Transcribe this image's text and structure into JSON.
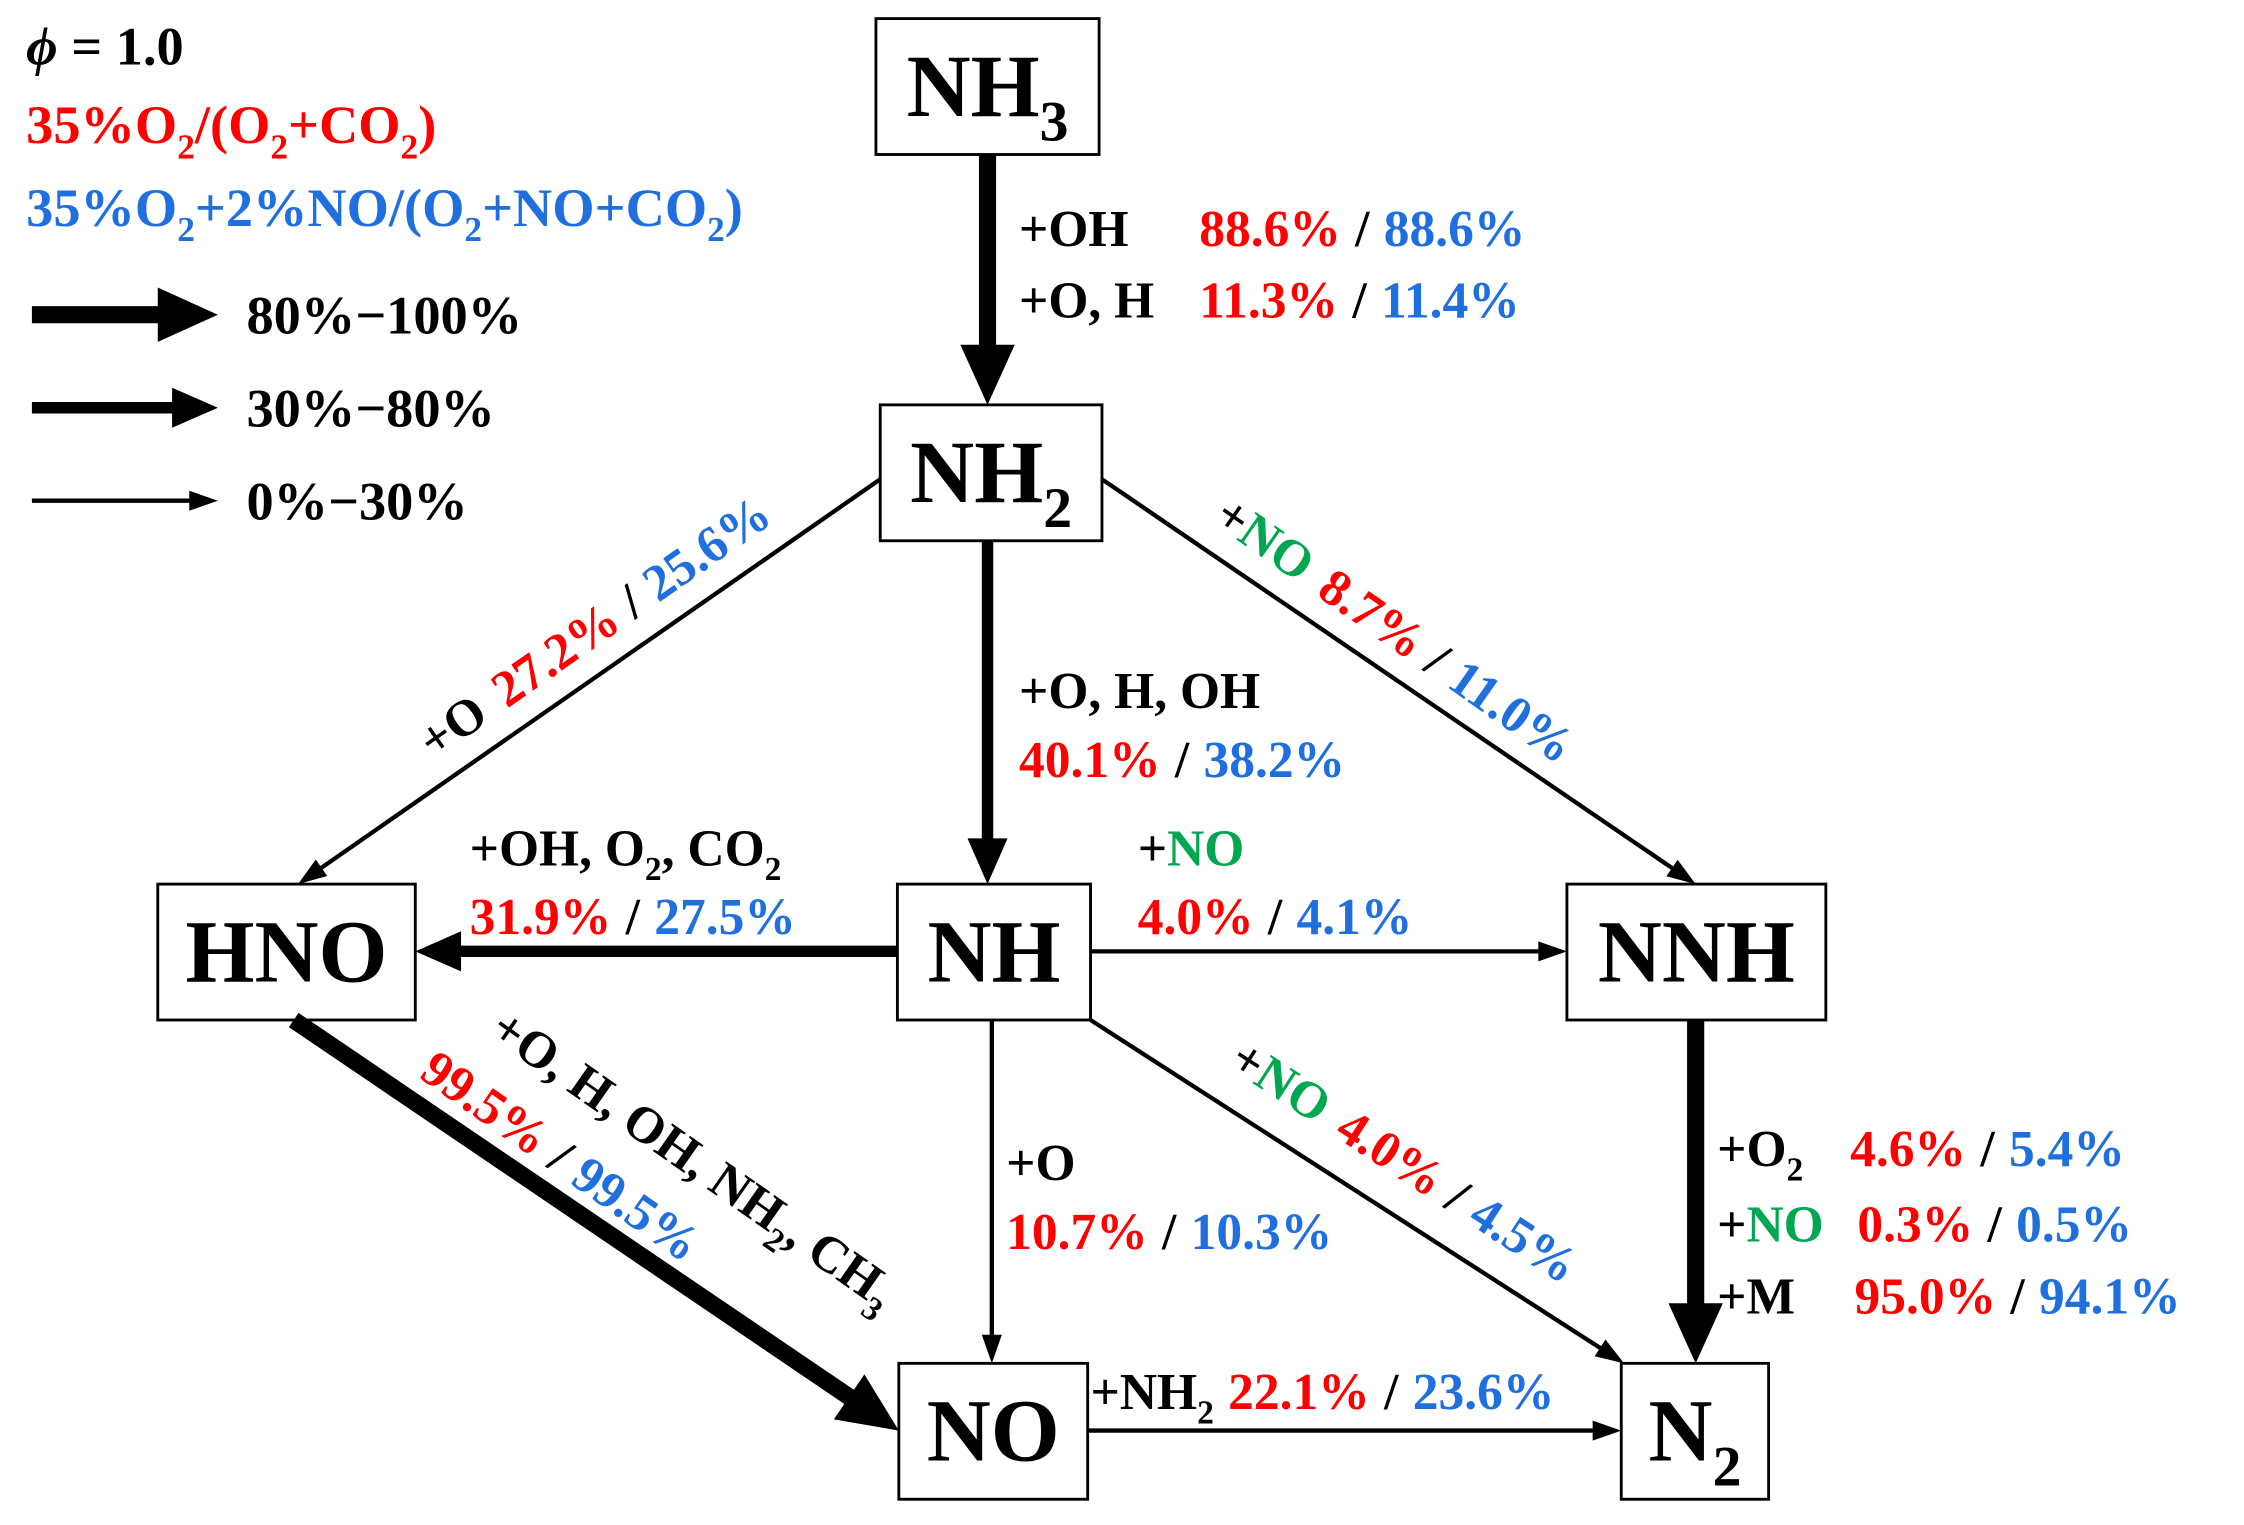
{
  "legend": {
    "phi": [
      "ϕ",
      " = 1.0"
    ],
    "case_1": [
      "35%O",
      "2",
      "/(O",
      "2",
      "+CO",
      "2",
      ")"
    ],
    "case_2": [
      "35%O",
      "2",
      "+2%NO/(O",
      "2",
      "+NO+CO",
      "2",
      ")"
    ],
    "arrow_ranges": [
      "80%−100%",
      "30%−80%",
      "0%−30%"
    ]
  },
  "separator": "/",
  "nodes": [
    {
      "label": "NH",
      "sub": "3"
    },
    {
      "label": "NH",
      "sub": "2"
    },
    {
      "label": "HNO"
    },
    {
      "label": "NH"
    },
    {
      "label": "NNH"
    },
    {
      "label": "NO"
    },
    {
      "label": "N",
      "sub": "2"
    }
  ],
  "edges": [
    [
      {
        "reactant": [
          "+OH"
        ],
        "case_1": "88.6%",
        "case_2": "88.6%"
      },
      {
        "reactant": [
          "+O, H"
        ],
        "case_1": "11.3%",
        "case_2": "11.4%"
      }
    ],
    [
      {
        "reactant": [
          "+O"
        ],
        "case_1": "27.2%",
        "case_2": "25.6%"
      }
    ],
    [
      {
        "reactant": [
          "+O, H, OH"
        ],
        "case_1": "40.1%",
        "case_2": "38.2%"
      }
    ],
    [
      {
        "reactant": [
          "+",
          "NO"
        ],
        "case_1": "8.7%",
        "case_2": "11.0%"
      }
    ],
    [
      {
        "reactant": [
          "+OH, O",
          "2",
          ", CO",
          "2"
        ],
        "case_1": "31.9%",
        "case_2": "27.5%"
      }
    ],
    [
      {
        "reactant": [
          "+",
          "NO"
        ],
        "case_1": "4.0%",
        "case_2": "4.1%"
      }
    ],
    [
      {
        "reactant": [
          "+O, H, OH, NH",
          "2",
          ", CH",
          "3"
        ],
        "case_1": "99.5%",
        "case_2": "99.5%"
      }
    ],
    [
      {
        "reactant": [
          "+O"
        ],
        "case_1": "10.7%",
        "case_2": "10.3%"
      }
    ],
    [
      {
        "reactant": [
          "+",
          "NO"
        ],
        "case_1": "4.0%",
        "case_2": "4.5%"
      }
    ],
    [
      {
        "reactant": [
          "+O",
          "2"
        ],
        "case_1": "4.6%",
        "case_2": "5.4%"
      },
      {
        "reactant": [
          "+",
          "NO"
        ],
        "case_1": "0.3%",
        "case_2": "0.5%"
      },
      {
        "reactant": [
          "+M"
        ],
        "case_1": "95.0%",
        "case_2": "94.1%"
      }
    ],
    [
      {
        "reactant": [
          "+NH",
          "2"
        ],
        "case_1": "22.1%",
        "case_2": "23.6%"
      }
    ]
  ]
}
